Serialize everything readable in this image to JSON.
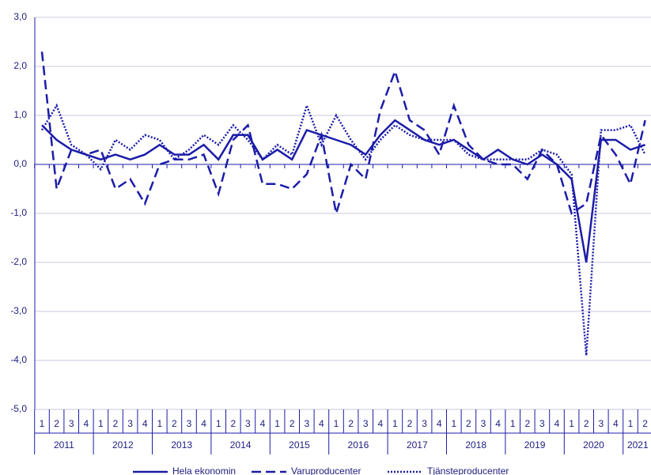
{
  "chart_data": {
    "type": "line",
    "categories": [
      "1",
      "2",
      "3",
      "4",
      "1",
      "2",
      "3",
      "4",
      "1",
      "2",
      "3",
      "4",
      "1",
      "2",
      "3",
      "4",
      "1",
      "2",
      "3",
      "4",
      "1",
      "2",
      "3",
      "4",
      "1",
      "2",
      "3",
      "4",
      "1",
      "2",
      "3",
      "4",
      "1",
      "2",
      "3",
      "4",
      "1",
      "2",
      "3",
      "4",
      "1",
      "2"
    ],
    "years": [
      "2011",
      "2012",
      "2013",
      "2014",
      "2015",
      "2016",
      "2017",
      "2018",
      "2019",
      "2020",
      "2021"
    ],
    "series": [
      {
        "name": "Hela ekonomin",
        "color": "#1c1ca8",
        "style": "solid",
        "values": [
          0.8,
          0.5,
          0.3,
          0.2,
          0.1,
          0.2,
          0.1,
          0.2,
          0.4,
          0.2,
          0.2,
          0.4,
          0.1,
          0.6,
          0.6,
          0.1,
          0.3,
          0.1,
          0.7,
          0.6,
          0.5,
          0.4,
          0.2,
          0.6,
          0.9,
          0.7,
          0.5,
          0.4,
          0.5,
          0.3,
          0.1,
          0.3,
          0.1,
          0.0,
          0.2,
          0.0,
          -0.3,
          -2.0,
          0.5,
          0.5,
          0.3,
          0.4
        ]
      },
      {
        "name": "Varuproducenter",
        "color": "#1c1ca8",
        "style": "dashed",
        "values": [
          2.3,
          -0.5,
          0.3,
          0.2,
          0.3,
          -0.5,
          -0.3,
          -0.8,
          0.0,
          0.1,
          0.1,
          0.2,
          -0.6,
          0.5,
          0.8,
          -0.4,
          -0.4,
          -0.5,
          -0.2,
          0.6,
          -1.0,
          0.0,
          -0.3,
          1.1,
          1.9,
          0.9,
          0.7,
          0.2,
          1.2,
          0.4,
          0.1,
          0.0,
          0.0,
          -0.3,
          0.3,
          0.0,
          -1.0,
          -0.8,
          0.6,
          0.2,
          -0.4,
          0.9
        ]
      },
      {
        "name": "Tjänsteproducenter",
        "color": "#1c1ca8",
        "style": "dotted",
        "values": [
          0.7,
          1.2,
          0.4,
          0.2,
          -0.1,
          0.5,
          0.3,
          0.6,
          0.5,
          0.1,
          0.3,
          0.6,
          0.4,
          0.8,
          0.5,
          0.1,
          0.4,
          0.2,
          1.2,
          0.4,
          1.0,
          0.5,
          0.1,
          0.5,
          0.8,
          0.6,
          0.5,
          0.5,
          0.5,
          0.2,
          0.1,
          0.1,
          0.1,
          0.1,
          0.3,
          0.2,
          -0.2,
          -3.9,
          0.7,
          0.7,
          0.8,
          0.2
        ]
      }
    ],
    "ylim": [
      -5,
      3
    ],
    "yticks": [
      {
        "value": -5,
        "label": "-5,0"
      },
      {
        "value": -4,
        "label": "-4,0"
      },
      {
        "value": -3,
        "label": "-3,0"
      },
      {
        "value": -2,
        "label": "-2,0"
      },
      {
        "value": -1,
        "label": "-1,0"
      },
      {
        "value": 0,
        "label": "0,0"
      },
      {
        "value": 1,
        "label": "1,0"
      },
      {
        "value": 2,
        "label": "2,0"
      },
      {
        "value": 3,
        "label": "3,0"
      }
    ],
    "grid": true
  }
}
